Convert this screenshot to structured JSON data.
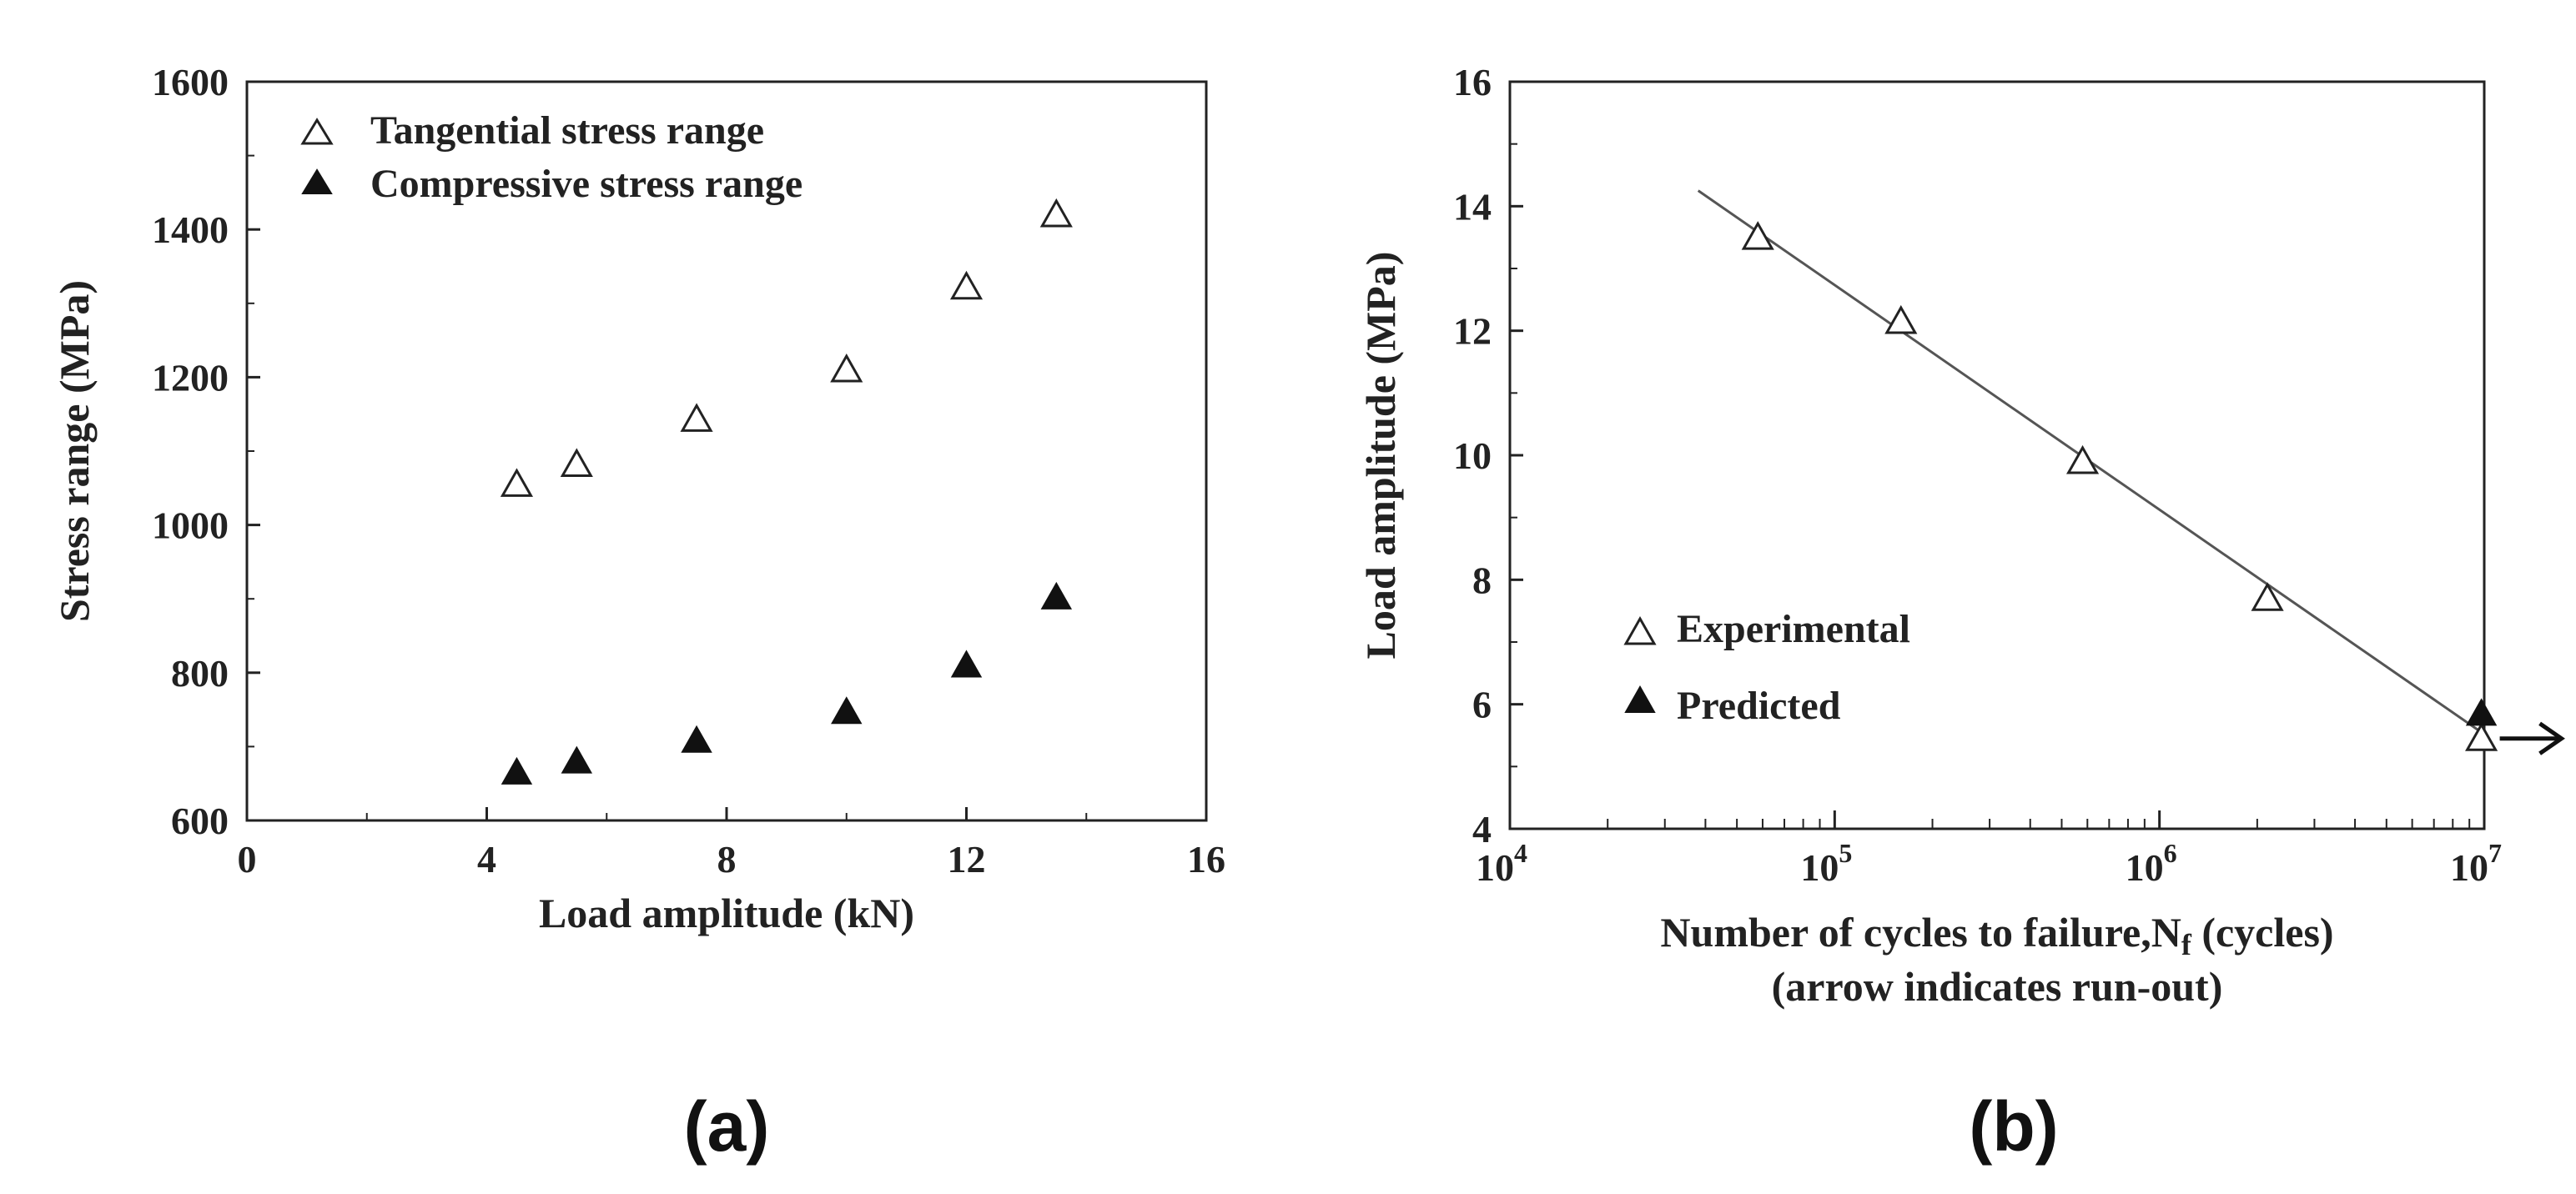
{
  "chart_data": [
    {
      "type": "scatter",
      "panel_label": "(a)",
      "xlabel": "Load amplitude (kN)",
      "ylabel": "Stress range (MPa)",
      "xlim": [
        0,
        16
      ],
      "ylim": [
        600,
        1600
      ],
      "xticks": [
        "0",
        "4",
        "8",
        "12",
        "16"
      ],
      "yticks": [
        "600",
        "800",
        "1000",
        "1200",
        "1400",
        "1600"
      ],
      "legend_position": "top-left",
      "series": [
        {
          "name": "Tangential stress range",
          "marker": "open-triangle",
          "x": [
            4.5,
            5.5,
            7.5,
            10,
            12,
            13.5
          ],
          "y": [
            1055,
            1082,
            1143,
            1210,
            1322,
            1420
          ]
        },
        {
          "name": "Compressive stress range",
          "marker": "filled-triangle",
          "x": [
            4.5,
            5.5,
            7.5,
            10,
            12,
            13.5
          ],
          "y": [
            665,
            680,
            708,
            747,
            810,
            902
          ]
        }
      ]
    },
    {
      "type": "scatter",
      "panel_label": "(b)",
      "xscale": "log",
      "xlabel_main": "Number of cycles to failure,N",
      "xlabel_sub": "f",
      "xlabel_tail": " (cycles)",
      "xlabel_line2": "(arrow indicates run-out)",
      "ylabel": "Load amplitude (MPa)",
      "xlim": [
        10000,
        10000000
      ],
      "ylim": [
        4,
        16
      ],
      "xticks": [
        {
          "base": "10",
          "exp": "4"
        },
        {
          "base": "10",
          "exp": "5"
        },
        {
          "base": "10",
          "exp": "6"
        },
        {
          "base": "10",
          "exp": "7"
        }
      ],
      "yticks": [
        "4",
        "6",
        "8",
        "10",
        "12",
        "14",
        "16"
      ],
      "legend_position": "bottom-left",
      "series": [
        {
          "name": "Experimental",
          "marker": "open-triangle",
          "x": [
            58000,
            160000,
            580000,
            2150000,
            9800000
          ],
          "y": [
            13.5,
            12.15,
            9.9,
            7.7,
            5.45
          ]
        },
        {
          "name": "Predicted",
          "marker": "filled-triangle",
          "x": [
            9800000
          ],
          "y": [
            5.85
          ]
        }
      ],
      "fit_line": {
        "x": [
          38000,
          9800000
        ],
        "y": [
          14.25,
          5.55
        ]
      },
      "runout_arrow": {
        "x": 9800000,
        "y": 5.45
      }
    }
  ]
}
